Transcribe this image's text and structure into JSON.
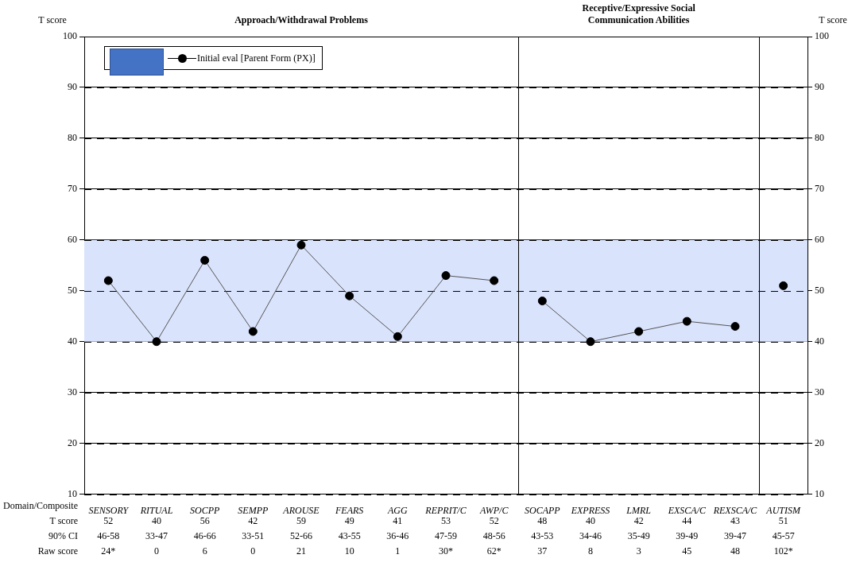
{
  "chart_data": {
    "type": "line",
    "title": "Approach/Withdrawal Problems",
    "subtitle": "Receptive/Expressive Social Communication Abilities",
    "ylabel": "T score",
    "y2label": "T score",
    "categories": [
      "SENSORY",
      "RITUAL",
      "SOCPP",
      "SEMPP",
      "AROUSE",
      "FEARS",
      "AGG",
      "REPRIT/C",
      "AWP/C",
      "SOCAPP",
      "EXPRESS",
      "LMRL",
      "EXSCA/C",
      "REXSCA/C",
      "AUTISM"
    ],
    "series": [
      {
        "name": "Initial eval [Parent Form (PX)]",
        "color": "#000000",
        "values": [
          52,
          40,
          56,
          42,
          59,
          49,
          41,
          53,
          52,
          null,
          null,
          null,
          null,
          null,
          null
        ]
      },
      {
        "color": "#000000",
        "values": [
          null,
          null,
          null,
          null,
          null,
          null,
          null,
          null,
          null,
          48,
          40,
          42,
          44,
          43,
          null
        ]
      },
      {
        "color": "#000000",
        "values": [
          null,
          null,
          null,
          null,
          null,
          null,
          null,
          null,
          null,
          null,
          null,
          null,
          null,
          null,
          51
        ]
      }
    ],
    "ylim": [
      10,
      100
    ],
    "yticks": [
      10,
      20,
      30,
      40,
      50,
      60,
      70,
      80,
      90,
      100
    ],
    "y2lim": [
      10,
      100
    ],
    "y2ticks": [
      10,
      20,
      30,
      40,
      50,
      60,
      70,
      80,
      90,
      100
    ],
    "bands": [
      {
        "axis": "y",
        "from": 40,
        "to": 60,
        "color": "#d9e3fc"
      }
    ],
    "grid": "y",
    "line_style": "solid",
    "marker": "circle",
    "legend": "top left",
    "annotations": [
      "Domain/Composite",
      "T score",
      "90% CI",
      "Raw score",
      "52",
      "40",
      "56",
      "42",
      "59",
      "49",
      "41",
      "53",
      "52",
      "48",
      "40",
      "42",
      "44",
      "43",
      "51",
      "46-58",
      "33-47",
      "46-66",
      "33-51",
      "52-66",
      "43-55",
      "36-46",
      "47-59",
      "48-56",
      "43-53",
      "34-46",
      "35-49",
      "39-49",
      "39-47",
      "45-57",
      "24*",
      "0",
      "6",
      "0",
      "21",
      "10",
      "1",
      "30*",
      "62*",
      "37",
      "8",
      "3",
      "45",
      "48",
      "102*"
    ]
  }
}
